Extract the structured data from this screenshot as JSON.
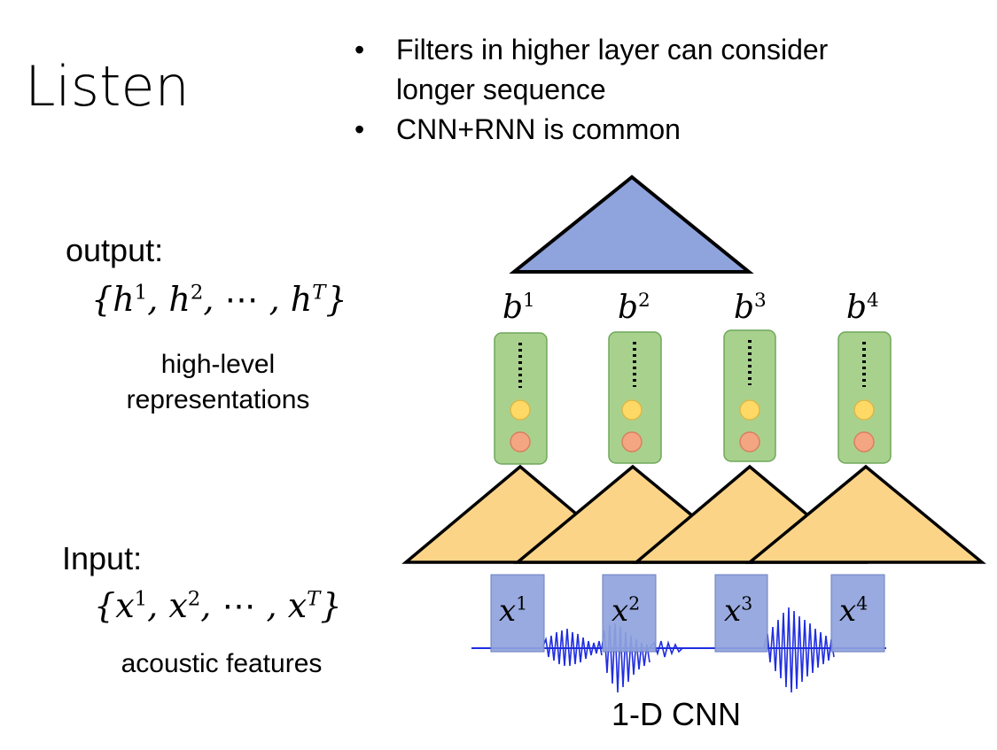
{
  "title": "Listen",
  "bullets": [
    "Filters in higher layer can consider",
    "longer sequence",
    "CNN+RNN is common"
  ],
  "output": {
    "label": "output:",
    "set_open": "{",
    "set_close": "}",
    "symbol": "h",
    "sup1": "1",
    "sup2": "2",
    "supT": "T",
    "dots": "⋯",
    "description_line1": "high-level",
    "description_line2": "representations"
  },
  "input": {
    "label": "Input:",
    "set_open": "{",
    "set_close": "}",
    "symbol": "x",
    "sup1": "1",
    "sup2": "2",
    "supT": "T",
    "dots": "⋯",
    "description": "acoustic features"
  },
  "b_labels": [
    {
      "sym": "b",
      "sup": "1"
    },
    {
      "sym": "b",
      "sup": "2"
    },
    {
      "sym": "b",
      "sup": "3"
    },
    {
      "sym": "b",
      "sup": "4"
    }
  ],
  "x_labels": [
    {
      "sym": "x",
      "sup": "1"
    },
    {
      "sym": "x",
      "sup": "2"
    },
    {
      "sym": "x",
      "sup": "3"
    },
    {
      "sym": "x",
      "sup": "4"
    }
  ],
  "cnn_label": "1-D CNN",
  "colors": {
    "top_triangle": "#8fa3dc",
    "filter_triangle": "#fcd488",
    "vector_box": "#a9d18e",
    "vector_border": "#6fa85a",
    "neuron_yellow": "#ffd966",
    "neuron_red": "#f4a582",
    "input_box": "#8fa3dc",
    "waveform": "#1f2de0"
  }
}
